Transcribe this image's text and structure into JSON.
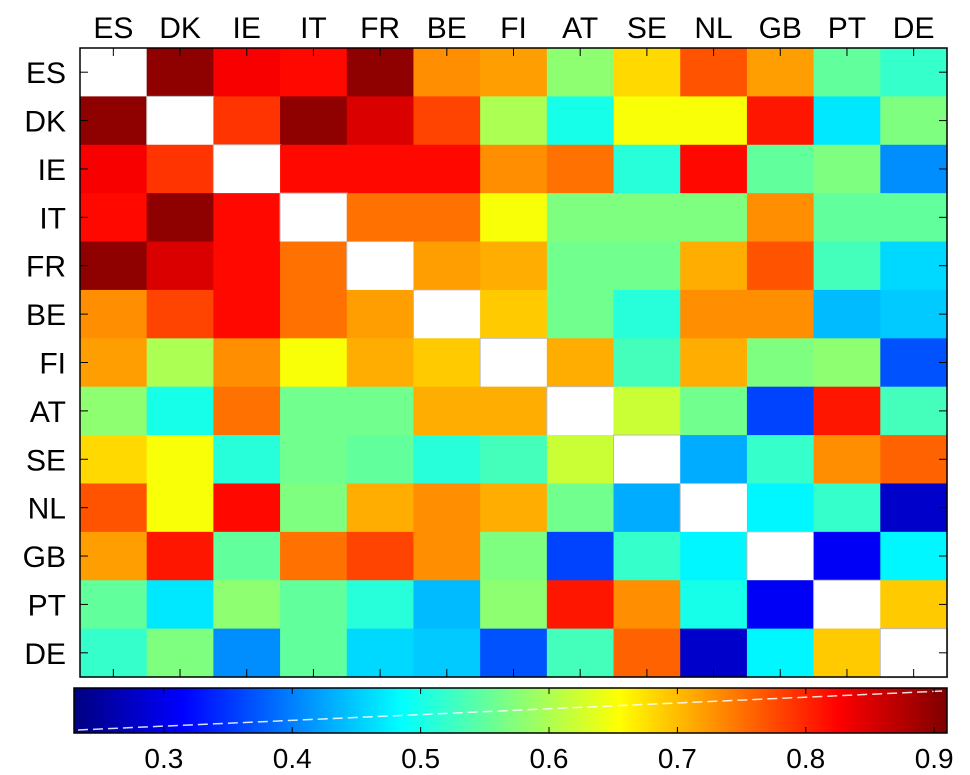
{
  "chart_data": {
    "type": "heatmap",
    "title": "",
    "xlabel": "",
    "ylabel": "",
    "colormap": "jet",
    "diagonal_color": "#ffffff",
    "categories": [
      "ES",
      "DK",
      "IE",
      "IT",
      "FR",
      "BE",
      "FI",
      "AT",
      "SE",
      "NL",
      "GB",
      "PT",
      "DE"
    ],
    "matrix": [
      [
        null,
        0.9,
        0.83,
        0.82,
        0.9,
        0.73,
        0.72,
        0.58,
        0.68,
        0.77,
        0.72,
        0.55,
        0.52
      ],
      [
        0.9,
        null,
        0.79,
        0.9,
        0.85,
        0.78,
        0.6,
        0.5,
        0.65,
        0.65,
        0.81,
        0.47,
        0.57
      ],
      [
        0.83,
        0.79,
        null,
        0.82,
        0.82,
        0.82,
        0.73,
        0.75,
        0.51,
        0.82,
        0.55,
        0.57,
        0.41
      ],
      [
        0.82,
        0.9,
        0.82,
        null,
        0.75,
        0.75,
        0.65,
        0.57,
        0.57,
        0.57,
        0.73,
        0.55,
        0.55
      ],
      [
        0.9,
        0.85,
        0.82,
        0.75,
        null,
        0.72,
        0.71,
        0.56,
        0.56,
        0.71,
        0.77,
        0.53,
        0.46
      ],
      [
        0.73,
        0.78,
        0.82,
        0.75,
        0.72,
        null,
        0.69,
        0.56,
        0.51,
        0.73,
        0.73,
        0.44,
        0.45
      ],
      [
        0.72,
        0.6,
        0.73,
        0.65,
        0.71,
        0.69,
        null,
        0.71,
        0.53,
        0.71,
        0.57,
        0.58,
        0.37
      ],
      [
        0.58,
        0.5,
        0.75,
        0.56,
        0.56,
        0.71,
        0.71,
        null,
        0.62,
        0.56,
        0.36,
        0.81,
        0.53
      ],
      [
        0.68,
        0.65,
        0.51,
        0.56,
        0.55,
        0.51,
        0.53,
        0.62,
        null,
        0.43,
        0.52,
        0.73,
        0.76
      ],
      [
        0.77,
        0.65,
        0.82,
        0.57,
        0.71,
        0.73,
        0.71,
        0.56,
        0.43,
        null,
        0.48,
        0.52,
        0.28
      ],
      [
        0.72,
        0.81,
        0.55,
        0.75,
        0.78,
        0.73,
        0.57,
        0.36,
        0.52,
        0.48,
        null,
        0.31,
        0.48
      ],
      [
        0.55,
        0.47,
        0.58,
        0.55,
        0.51,
        0.44,
        0.58,
        0.81,
        0.73,
        0.5,
        0.31,
        null,
        0.69
      ],
      [
        0.52,
        0.57,
        0.41,
        0.55,
        0.46,
        0.45,
        0.37,
        0.53,
        0.76,
        0.28,
        0.48,
        0.69,
        null
      ]
    ],
    "colorbar": {
      "range": [
        0.23,
        0.91
      ],
      "ticks": [
        0.3,
        0.4,
        0.5,
        0.6,
        0.7,
        0.8,
        0.9
      ],
      "tick_labels": [
        "0.3",
        "0.4",
        "0.5",
        "0.6",
        "0.7",
        "0.8",
        "0.9"
      ],
      "orientation": "horizontal",
      "placement": "bottom",
      "overlay_line": "dashed white diagonal"
    },
    "grid": false
  }
}
